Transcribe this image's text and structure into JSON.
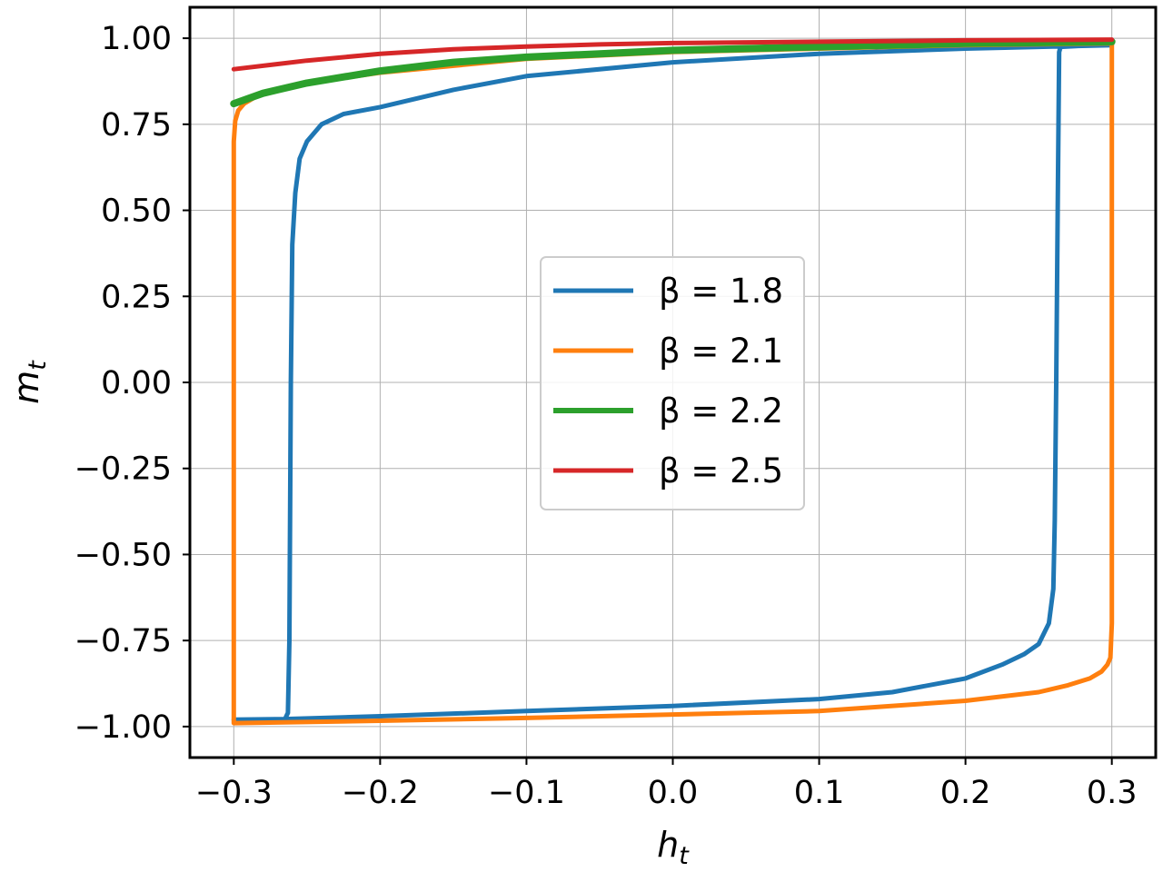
{
  "chart_data": {
    "type": "line",
    "xlabel": "h",
    "xlabel_sub": "t",
    "ylabel": "m",
    "ylabel_sub": "t",
    "xlim": [
      -0.33,
      0.33
    ],
    "ylim": [
      -1.09,
      1.09
    ],
    "xticks": [
      -0.3,
      -0.2,
      -0.1,
      0.0,
      0.1,
      0.2,
      0.3
    ],
    "xtick_labels": [
      "−0.3",
      "−0.2",
      "−0.1",
      "0.0",
      "0.1",
      "0.2",
      "0.3"
    ],
    "yticks": [
      -1.0,
      -0.75,
      -0.5,
      -0.25,
      0.0,
      0.25,
      0.5,
      0.75,
      1.0
    ],
    "ytick_labels": [
      "−1.00",
      "−0.75",
      "−0.50",
      "−0.25",
      "0.00",
      "0.25",
      "0.50",
      "0.75",
      "1.00"
    ],
    "grid": true,
    "legend_position": "center",
    "series": [
      {
        "name": "β = 1.8",
        "color": "#1f77b4",
        "width": 5,
        "x": [
          0.3,
          0.28,
          0.265,
          0.264,
          0.263,
          0.262,
          0.261,
          0.26,
          0.257,
          0.25,
          0.24,
          0.225,
          0.2,
          0.15,
          0.1,
          0.0,
          -0.1,
          -0.2,
          -0.265,
          -0.3,
          -0.3,
          -0.265,
          -0.263,
          -0.262,
          -0.261,
          -0.26,
          -0.258,
          -0.255,
          -0.25,
          -0.24,
          -0.225,
          -0.2,
          -0.15,
          -0.1,
          0.0,
          0.1,
          0.2,
          0.3
        ],
        "y": [
          0.98,
          0.978,
          0.975,
          0.96,
          0.5,
          0.0,
          -0.4,
          -0.6,
          -0.7,
          -0.76,
          -0.79,
          -0.82,
          -0.86,
          -0.9,
          -0.92,
          -0.94,
          -0.955,
          -0.97,
          -0.978,
          -0.98,
          -0.98,
          -0.978,
          -0.96,
          -0.75,
          0.0,
          0.4,
          0.55,
          0.65,
          0.7,
          0.75,
          0.78,
          0.8,
          0.85,
          0.89,
          0.93,
          0.955,
          0.97,
          0.98
        ]
      },
      {
        "name": "β = 2.1",
        "color": "#ff7f0e",
        "width": 5,
        "x": [
          0.3,
          0.3,
          0.3,
          0.3,
          0.299,
          0.297,
          0.293,
          0.285,
          0.27,
          0.25,
          0.2,
          0.1,
          0.0,
          -0.1,
          -0.2,
          -0.3,
          -0.3,
          -0.3,
          -0.3,
          -0.3,
          -0.299,
          -0.297,
          -0.293,
          -0.285,
          -0.27,
          -0.25,
          -0.2,
          -0.1,
          0.0,
          0.1,
          0.2,
          0.3
        ],
        "y": [
          0.985,
          0.9,
          0.0,
          -0.7,
          -0.8,
          -0.82,
          -0.84,
          -0.86,
          -0.88,
          -0.9,
          -0.925,
          -0.955,
          -0.965,
          -0.975,
          -0.983,
          -0.99,
          -0.99,
          -0.9,
          0.0,
          0.7,
          0.76,
          0.79,
          0.81,
          0.83,
          0.85,
          0.87,
          0.9,
          0.94,
          0.96,
          0.97,
          0.98,
          0.985
        ]
      },
      {
        "name": "β = 2.2",
        "color": "#2ca02c",
        "width": 8,
        "x": [
          -0.3,
          -0.29,
          -0.28,
          -0.27,
          -0.25,
          -0.2,
          -0.15,
          -0.1,
          -0.05,
          0.0,
          0.1,
          0.2,
          0.3
        ],
        "y": [
          0.81,
          0.825,
          0.84,
          0.85,
          0.87,
          0.905,
          0.93,
          0.945,
          0.955,
          0.965,
          0.975,
          0.985,
          0.99
        ]
      },
      {
        "name": "β = 2.5",
        "color": "#d62728",
        "width": 5,
        "x": [
          -0.3,
          -0.27,
          -0.25,
          -0.2,
          -0.15,
          -0.1,
          -0.05,
          0.0,
          0.1,
          0.2,
          0.3
        ],
        "y": [
          0.91,
          0.925,
          0.935,
          0.955,
          0.968,
          0.976,
          0.982,
          0.986,
          0.99,
          0.994,
          0.996
        ]
      }
    ]
  }
}
